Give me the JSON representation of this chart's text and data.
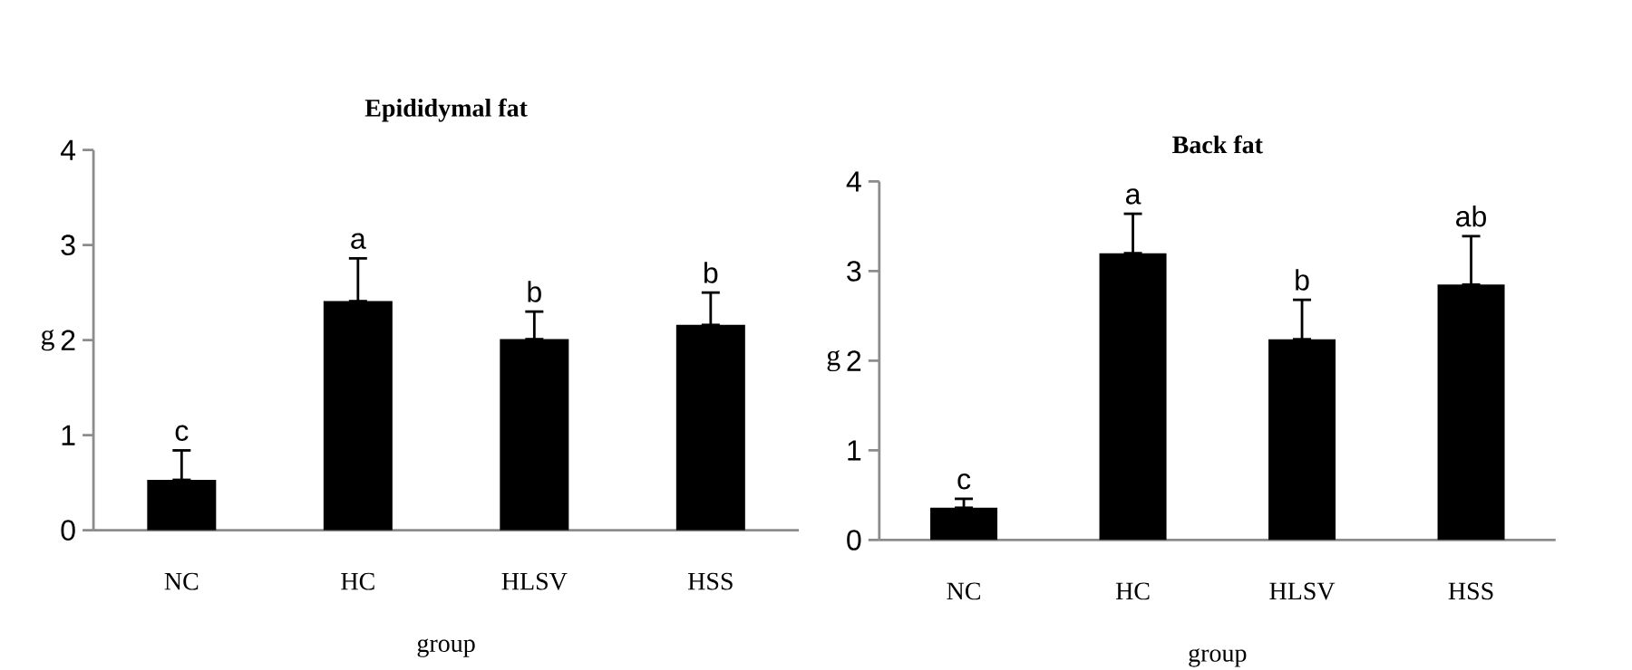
{
  "chart_data": [
    {
      "type": "bar",
      "title": "Epididymal fat",
      "xlabel": "group",
      "ylabel": "g",
      "categories": [
        "NC",
        "HC",
        "HLSV",
        "HSS"
      ],
      "values": [
        0.53,
        2.41,
        2.01,
        2.16
      ],
      "errors": [
        [
          0.53,
          0.84
        ],
        [
          2.41,
          2.86
        ],
        [
          2.01,
          2.3
        ],
        [
          2.16,
          2.5
        ]
      ],
      "color": "#000000",
      "ylim": [
        0,
        4
      ],
      "yticks": [
        0,
        1,
        2,
        3,
        4
      ],
      "grid": false,
      "annotations": [
        "c",
        "a",
        "b",
        "b"
      ]
    },
    {
      "type": "bar",
      "title": "Back fat",
      "xlabel": "group",
      "ylabel": "g",
      "categories": [
        "NC",
        "HC",
        "HLSV",
        "HSS"
      ],
      "values": [
        0.36,
        3.2,
        2.24,
        2.85
      ],
      "errors": [
        [
          0.36,
          0.46
        ],
        [
          3.2,
          3.64
        ],
        [
          2.24,
          2.68
        ],
        [
          2.85,
          3.39
        ]
      ],
      "color": "#000000",
      "ylim": [
        0,
        4
      ],
      "yticks": [
        0,
        1,
        2,
        3,
        4
      ],
      "grid": false,
      "annotations": [
        "c",
        "a",
        "b",
        "ab"
      ]
    }
  ]
}
